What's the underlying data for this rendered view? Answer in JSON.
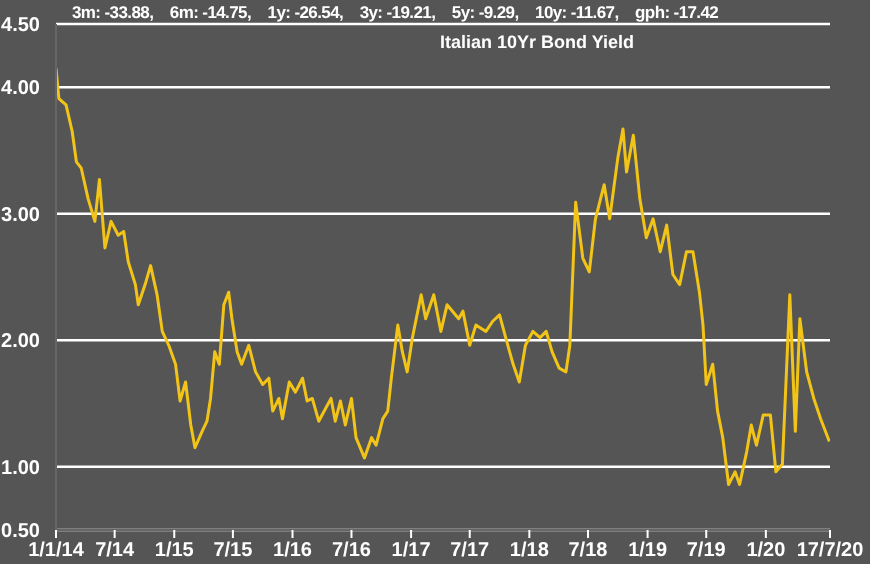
{
  "chart_data": {
    "type": "line",
    "title": "Italian 10Yr Bond Yield",
    "annotations": [
      "3m: -33.88,    6m: -14.75,    1y: -26.54,    3y: -19.21,    5y: -9.29,    10y: -11.67,    gph: -17.42"
    ],
    "x": [
      "2014-01-01",
      "2014-01-10",
      "2014-02-01",
      "2014-02-20",
      "2014-03-05",
      "2014-03-20",
      "2014-04-10",
      "2014-05-01",
      "2014-05-15",
      "2014-06-01",
      "2014-06-20",
      "2014-07-12",
      "2014-07-29",
      "2014-08-12",
      "2014-09-03",
      "2014-09-12",
      "2014-10-03",
      "2014-10-20",
      "2014-11-09",
      "2014-11-25",
      "2014-12-15",
      "2015-01-05",
      "2015-01-19",
      "2015-02-05",
      "2015-02-21",
      "2015-03-06",
      "2015-03-28",
      "2015-04-12",
      "2015-04-23",
      "2015-05-06",
      "2015-05-20",
      "2015-06-03",
      "2015-06-18",
      "2015-06-28",
      "2015-07-14",
      "2015-07-28",
      "2015-08-19",
      "2015-09-09",
      "2015-10-01",
      "2015-10-20",
      "2015-11-01",
      "2015-11-20",
      "2015-12-01",
      "2015-12-22",
      "2016-01-10",
      "2016-02-01",
      "2016-02-15",
      "2016-03-02",
      "2016-03-22",
      "2016-04-12",
      "2016-04-29",
      "2016-05-12",
      "2016-05-28",
      "2016-06-12",
      "2016-07-01",
      "2016-07-15",
      "2016-08-10",
      "2016-09-01",
      "2016-09-15",
      "2016-10-06",
      "2016-10-21",
      "2016-11-01",
      "2016-11-21",
      "2016-12-05",
      "2016-12-20",
      "2017-01-05",
      "2017-02-01",
      "2017-02-15",
      "2017-03-12",
      "2017-04-03",
      "2017-04-22",
      "2017-05-28",
      "2017-06-10",
      "2017-07-01",
      "2017-07-20",
      "2017-08-20",
      "2017-09-10",
      "2017-10-01",
      "2017-10-20",
      "2017-11-12",
      "2017-12-01",
      "2017-12-20",
      "2018-01-12",
      "2018-02-03",
      "2018-02-22",
      "2018-03-12",
      "2018-04-03",
      "2018-04-24",
      "2018-05-06",
      "2018-05-24",
      "2018-06-15",
      "2018-07-05",
      "2018-07-24",
      "2018-08-20",
      "2018-09-06",
      "2018-10-01",
      "2018-10-17",
      "2018-10-28",
      "2018-11-18",
      "2018-12-08",
      "2018-12-28",
      "2019-01-18",
      "2019-02-09",
      "2019-03-01",
      "2019-03-20",
      "2019-04-10",
      "2019-05-01",
      "2019-05-21",
      "2019-06-10",
      "2019-06-21",
      "2019-07-01",
      "2019-07-21",
      "2019-08-05",
      "2019-08-21",
      "2019-09-08",
      "2019-09-28",
      "2019-10-12",
      "2019-11-03",
      "2019-11-17",
      "2019-12-03",
      "2019-12-24",
      "2020-01-15",
      "2020-02-01",
      "2020-02-21",
      "2020-03-15",
      "2020-04-01",
      "2020-04-15",
      "2020-05-06",
      "2020-05-28",
      "2020-06-18",
      "2020-07-15"
    ],
    "series": [
      {
        "color": "#f2c417",
        "values": [
          4.15,
          3.91,
          3.86,
          3.65,
          3.41,
          3.36,
          3.12,
          2.94,
          3.27,
          2.73,
          2.94,
          2.83,
          2.86,
          2.62,
          2.44,
          2.28,
          2.44,
          2.59,
          2.36,
          2.07,
          1.96,
          1.81,
          1.52,
          1.67,
          1.33,
          1.15,
          1.28,
          1.36,
          1.54,
          1.91,
          1.81,
          2.28,
          2.38,
          2.17,
          1.91,
          1.81,
          1.96,
          1.75,
          1.65,
          1.7,
          1.44,
          1.54,
          1.38,
          1.67,
          1.59,
          1.7,
          1.52,
          1.54,
          1.36,
          1.46,
          1.54,
          1.36,
          1.52,
          1.33,
          1.54,
          1.23,
          1.07,
          1.23,
          1.17,
          1.38,
          1.44,
          1.7,
          2.12,
          1.91,
          1.75,
          2.02,
          2.36,
          2.17,
          2.36,
          2.07,
          2.28,
          2.17,
          2.23,
          1.96,
          2.12,
          2.07,
          2.15,
          2.2,
          2.02,
          1.81,
          1.67,
          1.96,
          2.07,
          2.02,
          2.07,
          1.91,
          1.78,
          1.75,
          1.96,
          3.09,
          2.65,
          2.54,
          2.96,
          3.23,
          2.96,
          3.44,
          3.67,
          3.33,
          3.62,
          3.12,
          2.81,
          2.96,
          2.7,
          2.91,
          2.52,
          2.44,
          2.7,
          2.7,
          2.38,
          2.12,
          1.65,
          1.81,
          1.44,
          1.23,
          0.86,
          0.96,
          0.86,
          1.12,
          1.33,
          1.17,
          1.41,
          1.41,
          0.96,
          1.02,
          2.36,
          1.28,
          2.17,
          1.75,
          1.54,
          1.38,
          1.2
        ]
      }
    ],
    "xlim": [
      "2014-01-01",
      "2020-07-17"
    ],
    "xticks": [
      {
        "value": "2014-01-01",
        "label": "1/1/14"
      },
      {
        "value": "2014-07-01",
        "label": "7/14"
      },
      {
        "value": "2015-01-01",
        "label": "1/15"
      },
      {
        "value": "2015-07-01",
        "label": "7/15"
      },
      {
        "value": "2016-01-01",
        "label": "1/16"
      },
      {
        "value": "2016-07-01",
        "label": "7/16"
      },
      {
        "value": "2017-01-01",
        "label": "1/17"
      },
      {
        "value": "2017-07-01",
        "label": "7/17"
      },
      {
        "value": "2018-01-01",
        "label": "1/18"
      },
      {
        "value": "2018-07-01",
        "label": "7/18"
      },
      {
        "value": "2019-01-01",
        "label": "1/19"
      },
      {
        "value": "2019-07-01",
        "label": "7/19"
      },
      {
        "value": "2020-01-01",
        "label": "1/20"
      },
      {
        "value": "2020-07-17",
        "label": "17/7/20"
      }
    ],
    "ylim": [
      0.5,
      4.5
    ],
    "yticks": [
      {
        "value": 0.5,
        "label": "0.50"
      },
      {
        "value": 1,
        "label": "1.00"
      },
      {
        "value": 2,
        "label": "2.00"
      },
      {
        "value": 3,
        "label": "3.00"
      },
      {
        "value": 4,
        "label": "4.00"
      },
      {
        "value": 4.5,
        "label": "4.50"
      }
    ],
    "grid": "y",
    "marker": "none",
    "line_style": "solid"
  }
}
